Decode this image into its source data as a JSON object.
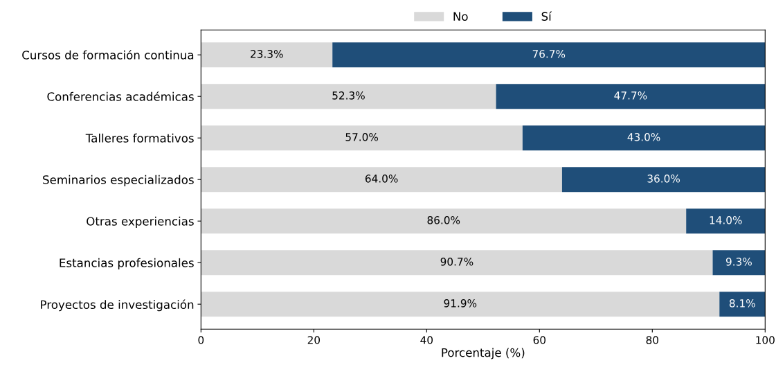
{
  "chart_data": {
    "type": "bar",
    "orientation": "horizontal",
    "stacked": true,
    "xlabel": "Porcentaje (%)",
    "categories": [
      "Cursos de formación continua",
      "Conferencias académicas",
      "Talleres formativos",
      "Seminarios especializados",
      "Otras experiencias",
      "Estancias profesionales",
      "Proyectos de investigación"
    ],
    "series": [
      {
        "name": "No",
        "color": "#d9d9d9",
        "values": [
          23.3,
          52.3,
          57.0,
          64.0,
          86.0,
          90.7,
          91.9
        ],
        "value_labels": [
          "23.3%",
          "52.3%",
          "57.0%",
          "64.0%",
          "86.0%",
          "90.7%",
          "91.9%"
        ]
      },
      {
        "name": "Sí",
        "color": "#1f4e79",
        "values": [
          76.7,
          47.7,
          43.0,
          36.0,
          14.0,
          9.3,
          8.1
        ],
        "value_labels": [
          "76.7%",
          "47.7%",
          "43.0%",
          "36.0%",
          "14.0%",
          "9.3%",
          "8.1%"
        ]
      }
    ],
    "xlim": [
      0,
      100
    ],
    "xticks": [
      0,
      20,
      40,
      60,
      80,
      100
    ],
    "grid": false,
    "legend": "top"
  }
}
